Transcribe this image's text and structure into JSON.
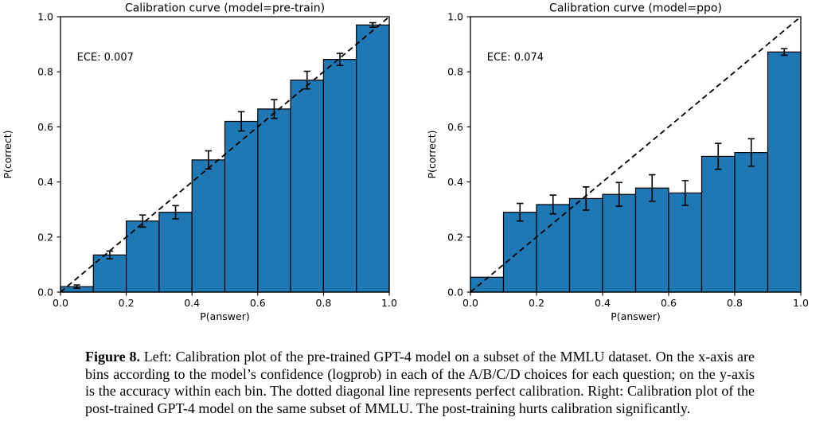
{
  "figure": {
    "caption_label": "Figure 8.",
    "caption_text": " Left: Calibration plot of the pre-trained GPT-4 model on a subset of the MMLU dataset. On the x-axis are bins according to the model’s confidence (logprob) in each of the A/B/C/D choices for each question; on the y-axis is the accuracy within each bin. The dotted diagonal line represents perfect calibration. Right: Calibration plot of the post-trained GPT-4 model on the same subset of MMLU. The post-training hurts calibration significantly."
  },
  "chart_data": [
    {
      "type": "bar",
      "title": "Calibration curve (model=pre-train)",
      "annotation": "ECE: 0.007",
      "xlabel": "P(answer)",
      "ylabel": "P(correct)",
      "xlim": [
        0.0,
        1.0
      ],
      "ylim": [
        0.0,
        1.0
      ],
      "xticks": [
        0.0,
        0.2,
        0.4,
        0.6,
        0.8,
        1.0
      ],
      "yticks": [
        0.0,
        0.2,
        0.4,
        0.6,
        0.8,
        1.0
      ],
      "bin_edges": [
        0.0,
        0.1,
        0.2,
        0.3,
        0.4,
        0.5,
        0.6,
        0.7,
        0.8,
        0.9,
        1.0
      ],
      "values": [
        0.02,
        0.135,
        0.258,
        0.29,
        0.48,
        0.62,
        0.665,
        0.77,
        0.845,
        0.97
      ],
      "errors": [
        0.006,
        0.014,
        0.022,
        0.024,
        0.033,
        0.035,
        0.034,
        0.032,
        0.022,
        0.008
      ],
      "bar_color": "#1f77b4",
      "edge_color": "#000000",
      "diagonal_line": {
        "from": [
          0.0,
          0.0
        ],
        "to": [
          1.0,
          1.0
        ],
        "style": "dashed",
        "color": "#000000",
        "meaning": "perfect calibration"
      },
      "grid": false,
      "legend": false
    },
    {
      "type": "bar",
      "title": "Calibration curve (model=ppo)",
      "annotation": "ECE: 0.074",
      "xlabel": "P(answer)",
      "ylabel": "P(correct)",
      "xlim": [
        0.0,
        1.0
      ],
      "ylim": [
        0.0,
        1.0
      ],
      "xticks": [
        0.0,
        0.2,
        0.4,
        0.6,
        0.8,
        1.0
      ],
      "yticks": [
        0.0,
        0.2,
        0.4,
        0.6,
        0.8,
        1.0
      ],
      "bin_edges": [
        0.0,
        0.1,
        0.2,
        0.3,
        0.4,
        0.5,
        0.6,
        0.7,
        0.8,
        0.9,
        1.0
      ],
      "values": [
        0.054,
        0.29,
        0.318,
        0.34,
        0.355,
        0.378,
        0.36,
        0.493,
        0.507,
        0.872
      ],
      "errors": [
        0,
        0.032,
        0.034,
        0.042,
        0.043,
        0.048,
        0.045,
        0.047,
        0.05,
        0.012
      ],
      "bar_color": "#1f77b4",
      "edge_color": "#000000",
      "diagonal_line": {
        "from": [
          0.0,
          0.0
        ],
        "to": [
          1.0,
          1.0
        ],
        "style": "dashed",
        "color": "#000000",
        "meaning": "perfect calibration"
      },
      "grid": false,
      "legend": false
    }
  ]
}
